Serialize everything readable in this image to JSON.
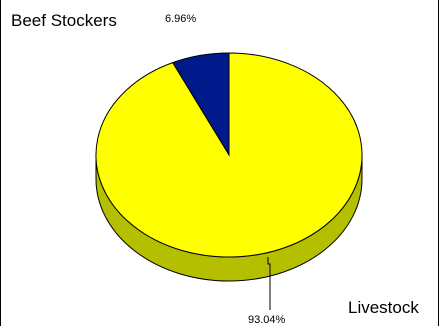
{
  "chart_data": {
    "type": "pie",
    "style": "3d",
    "slices": [
      {
        "label": "Beef Stockers",
        "value": 6.96,
        "display": "6.96%",
        "color": "#001a8c",
        "side_color": "#000f5c"
      },
      {
        "label": "Livestock",
        "value": 93.04,
        "display": "93.04%",
        "color": "#ffff00",
        "side_color": "#b4bf00"
      }
    ],
    "legend": "outside labels (top-left and bottom-right)"
  }
}
